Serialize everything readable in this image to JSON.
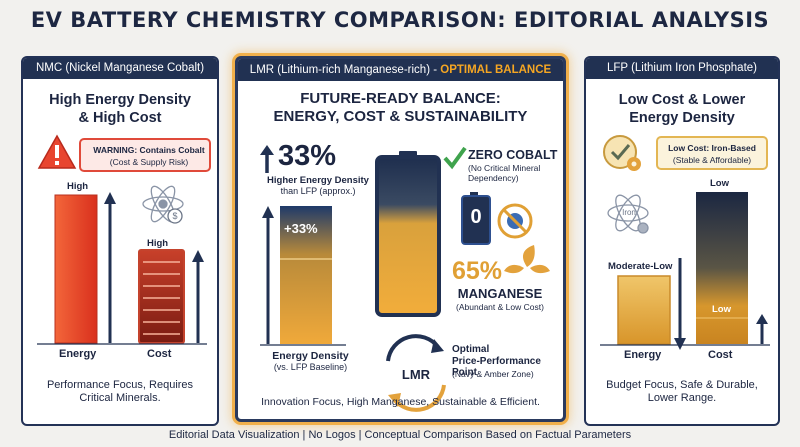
{
  "title": "EV BATTERY CHEMISTRY COMPARISON: EDITORIAL ANALYSIS",
  "footer": "Editorial Data Visualization | No Logos | Conceptual Comparison Based on Factual Parameters",
  "nmc": {
    "header": "NMC (Nickel Manganese Cobalt)",
    "subtitle_line1": "High Energy Density",
    "subtitle_line2": "& High Cost",
    "warning_title": "WARNING: Contains Cobalt",
    "warning_detail": "(Cost & Supply Risk)",
    "energy_level": "High",
    "cost_level": "High",
    "energy_label": "Energy",
    "cost_label": "Cost",
    "summary_line1": "Performance Focus, Requires",
    "summary_line2": "Critical Minerals."
  },
  "lmr": {
    "header_prefix": "LMR (Lithium-rich Manganese-rich) -",
    "header_accent": "OPTIMAL BALANCE",
    "subtitle_line1": "FUTURE-READY BALANCE:",
    "subtitle_line2": "ENERGY, COST & SUSTAINABILITY",
    "energy_gain": "33%",
    "energy_gain_label": "Higher Energy Density",
    "energy_gain_note": "than LFP (approx.)",
    "bar_label": "+33%",
    "energy_axis_label": "Energy Density",
    "energy_axis_note": "(vs. LFP Baseline)",
    "cobalt_title": "ZERO COBALT",
    "cobalt_note_line1": "(No Critical Mineral",
    "cobalt_note_line2": "Dependency)",
    "zero_digit": "0",
    "manganese_pct": "65%",
    "manganese_label": "MANGANESE",
    "manganese_note": "(Abundant & Low Cost)",
    "cycle_label": "LMR",
    "optimal_line1": "Optimal",
    "optimal_line2": "Price-Performance Point",
    "optimal_note": "(Navy & Amber Zone)",
    "summary": "Innovation Focus, High Manganese, Sustainable & Efficient."
  },
  "lfp": {
    "header": "LFP (Lithium Iron Phosphate)",
    "subtitle_line1": "Low Cost & Lower",
    "subtitle_line2": "Energy Density",
    "info_title": "Low Cost: Iron-Based",
    "info_detail": "(Stable & Affordable)",
    "iron_label": "Iron",
    "energy_level": "Moderate-Low",
    "cost_level_top": "Low",
    "cost_level_fill": "Low",
    "energy_label": "Energy",
    "cost_label": "Cost",
    "summary_line1": "Budget Focus, Safe & Durable,",
    "summary_line2": "Lower Range."
  },
  "colors": {
    "navy": "#213152",
    "amber": "#e8a63a",
    "red": "#e8452f",
    "green": "#3fa34d"
  }
}
